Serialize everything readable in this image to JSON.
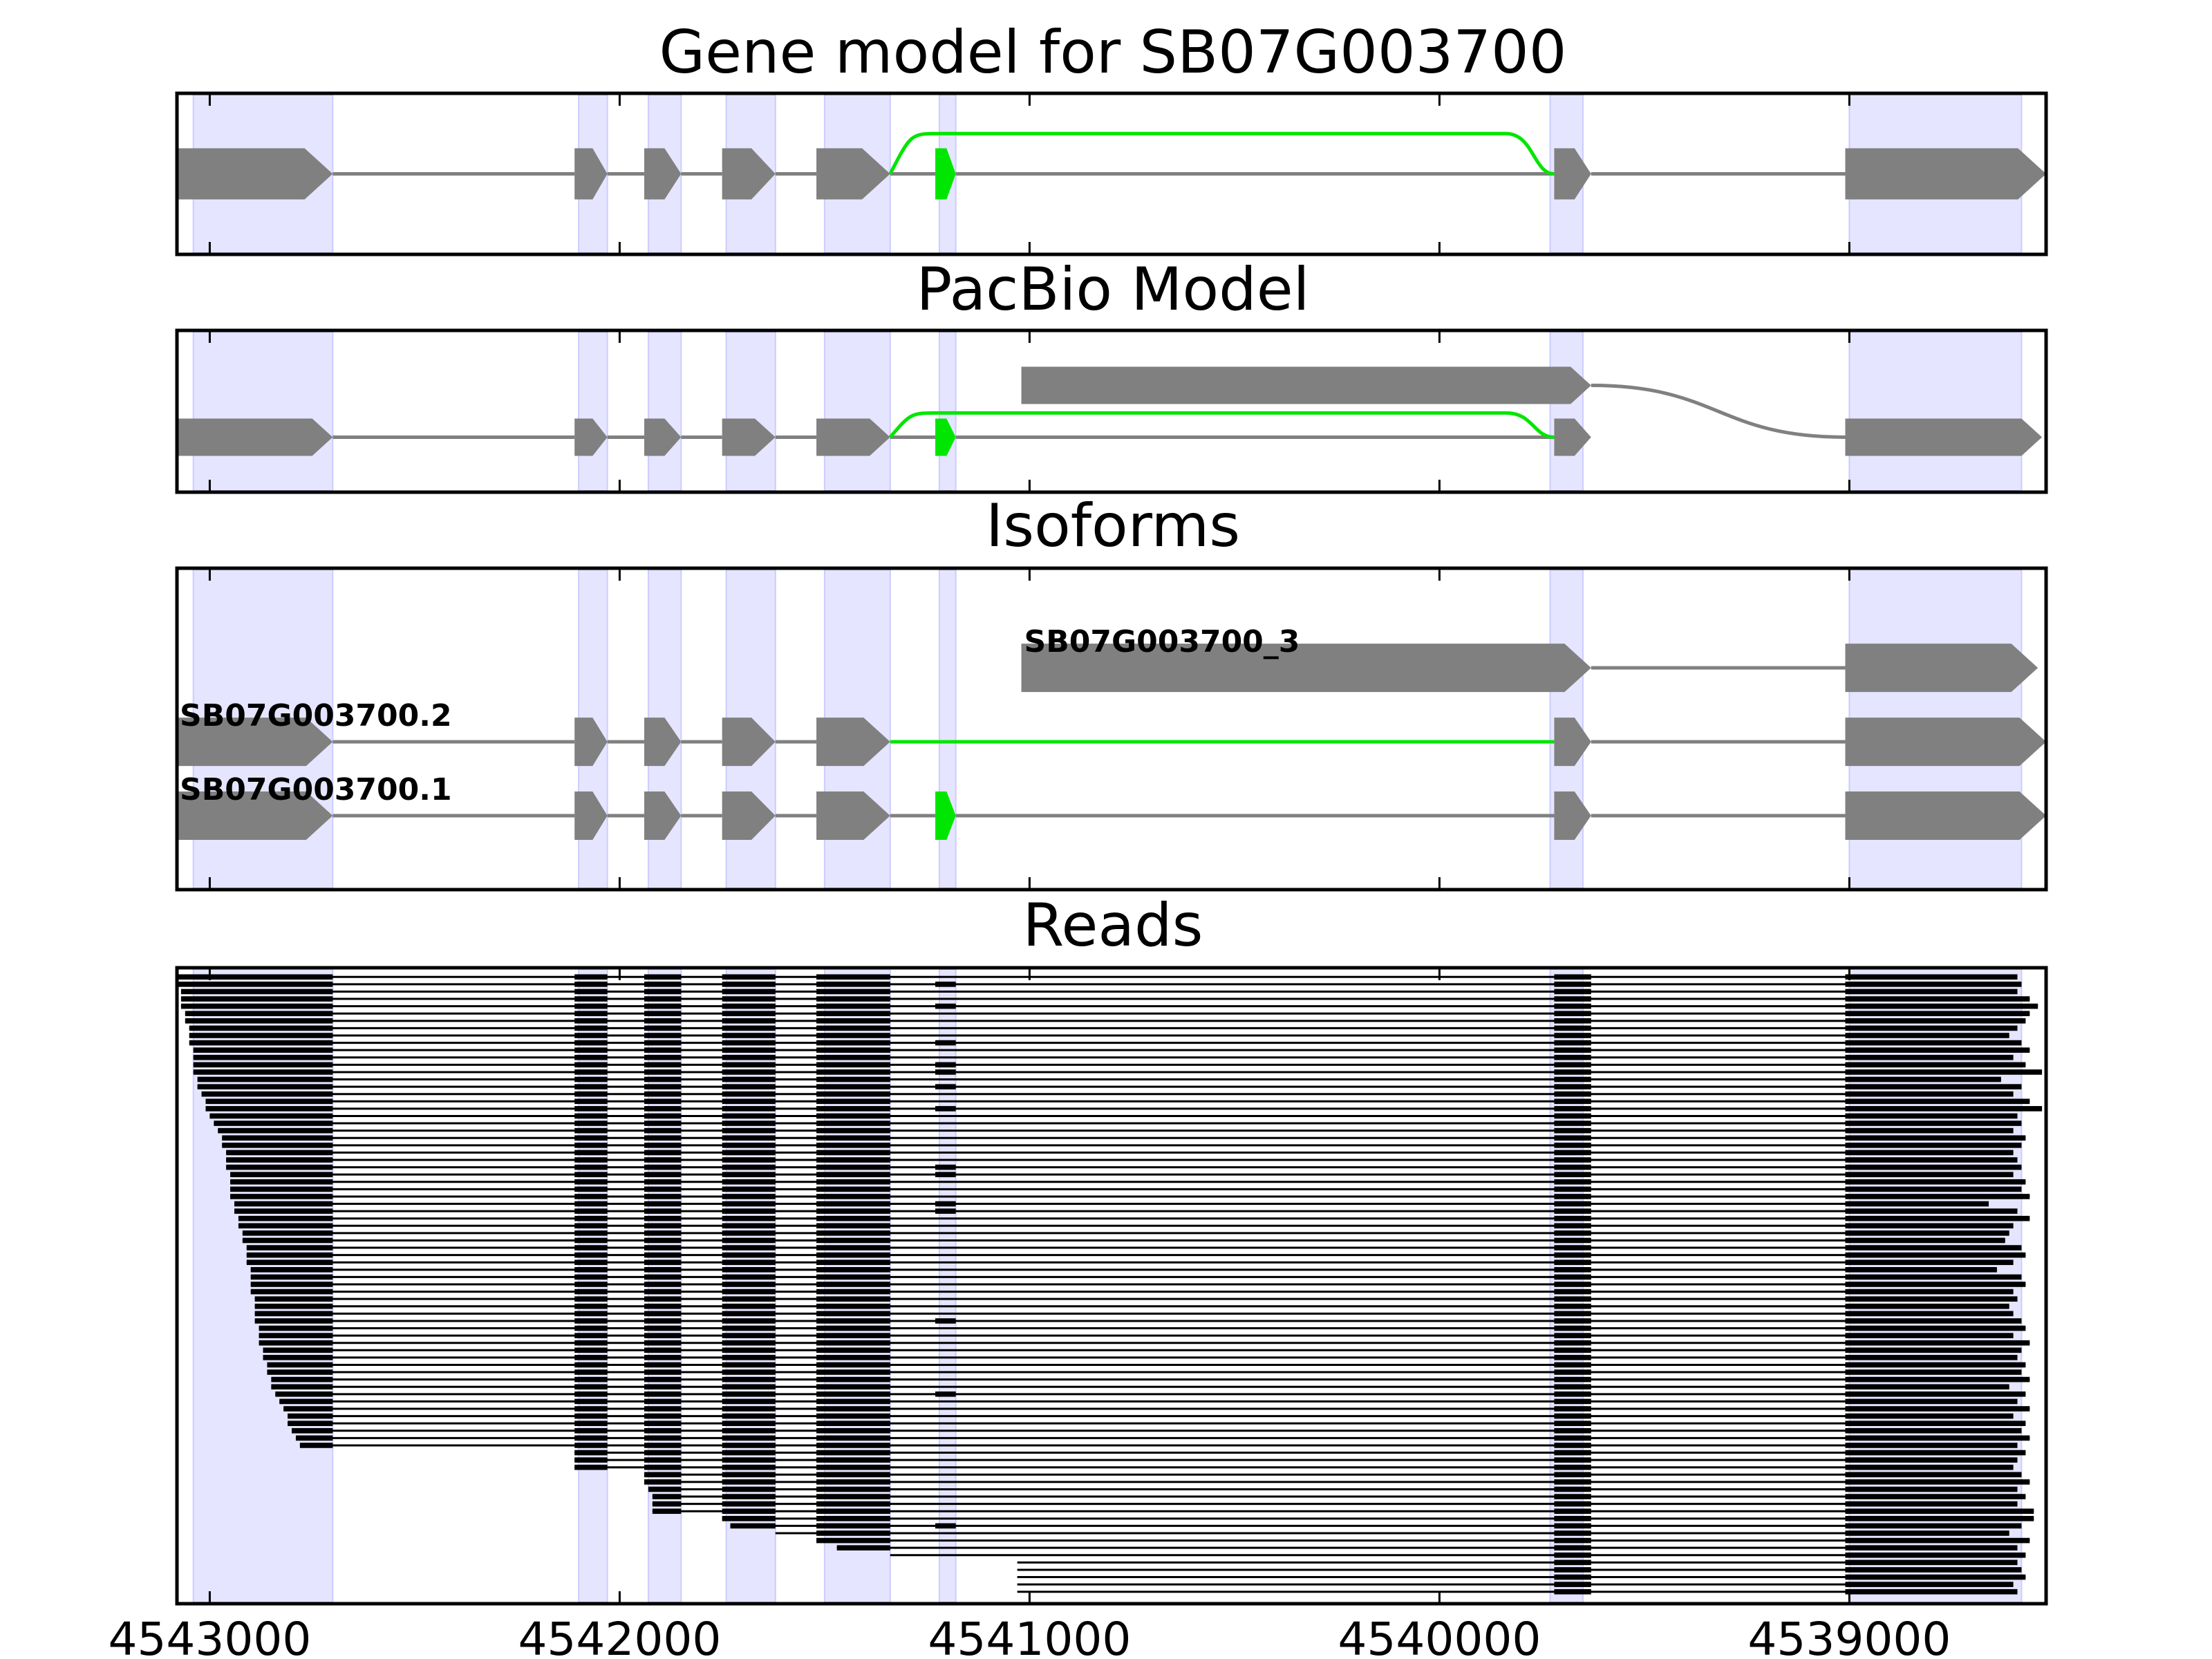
{
  "colors": {
    "exon": "#808080",
    "intron": "#808080",
    "alt_splice": "#00e600",
    "highlight_band": "#e5e5ff",
    "highlight_band_edge": "#ccccff",
    "read": "#000000",
    "frame": "#000000"
  },
  "x_axis": {
    "domain": [
      4543080,
      4538520
    ],
    "ticks": [
      {
        "value": 4543000,
        "label": "4543000"
      },
      {
        "value": 4542000,
        "label": "4542000"
      },
      {
        "value": 4541000,
        "label": "4541000"
      },
      {
        "value": 4540000,
        "label": "4540000"
      },
      {
        "value": 4539000,
        "label": "4539000"
      }
    ]
  },
  "highlight_bands": [
    [
      4543040,
      4542700
    ],
    [
      4542100,
      4542030
    ],
    [
      4541930,
      4541850
    ],
    [
      4541740,
      4541620
    ],
    [
      4541500,
      4541340
    ],
    [
      4541220,
      4541180
    ],
    [
      4539730,
      4539650
    ],
    [
      4539000,
      4538580
    ]
  ],
  "panels": [
    {
      "id": "gene-model",
      "title": "Gene model for SB07G003700",
      "rows": [
        {
          "y": 0.5,
          "label": "",
          "exons": [
            [
              4543080,
              4542700
            ],
            [
              4542110,
              4542030
            ],
            [
              4541940,
              4541850
            ],
            [
              4541750,
              4541620
            ],
            [
              4541520,
              4541340
            ],
            [
              4541230,
              4541180
            ],
            [
              4539720,
              4539630
            ],
            [
              4539010,
              4538520
            ]
          ],
          "alt_exons": [
            [
              4541230,
              4541180
            ]
          ]
        }
      ],
      "splice_curves": [
        {
          "from": 4541340,
          "to": 4539720,
          "y_from": 0.5,
          "y_to": 0.5,
          "lift": 0.25,
          "color": "alt_splice"
        }
      ]
    },
    {
      "id": "pacbio-model",
      "title": "PacBio Model",
      "rows": [
        {
          "y": 0.66,
          "label": "",
          "exons": [
            [
              4543080,
              4542700
            ],
            [
              4542110,
              4542030
            ],
            [
              4541940,
              4541850
            ],
            [
              4541750,
              4541620
            ],
            [
              4541520,
              4541340
            ],
            [
              4541230,
              4541180
            ],
            [
              4539720,
              4539630
            ],
            [
              4539010,
              4538530
            ]
          ],
          "alt_exons": [
            [
              4541230,
              4541180
            ]
          ],
          "no_intron_spans": [
            [
              4539630,
              4539010
            ]
          ]
        },
        {
          "y": 0.34,
          "label": "",
          "exons": [
            [
              4541020,
              4539630
            ]
          ],
          "alt_exons": []
        }
      ],
      "splice_curves": [
        {
          "from": 4541340,
          "to": 4539720,
          "y_from": 0.66,
          "y_to": 0.66,
          "lift": 0.15,
          "color": "alt_splice"
        },
        {
          "from": 4539630,
          "to": 4539010,
          "y_from": 0.34,
          "y_to": 0.66,
          "lift": 0,
          "color": "intron"
        }
      ]
    },
    {
      "id": "isoforms",
      "title": "Isoforms",
      "rows": [
        {
          "y": 0.31,
          "label": "SB07G003700_3",
          "exons": [
            [
              4541020,
              4539630
            ],
            [
              4539010,
              4538540
            ]
          ],
          "alt_exons": []
        },
        {
          "y": 0.54,
          "label": "SB07G003700.2",
          "exons": [
            [
              4543080,
              4542700
            ],
            [
              4542110,
              4542030
            ],
            [
              4541940,
              4541850
            ],
            [
              4541750,
              4541620
            ],
            [
              4541520,
              4541340
            ],
            [
              4539720,
              4539630
            ],
            [
              4539010,
              4538520
            ]
          ],
          "alt_exons": [],
          "alt_introns": [
            [
              4541340,
              4539720
            ]
          ]
        },
        {
          "y": 0.77,
          "label": "SB07G003700.1",
          "exons": [
            [
              4543080,
              4542700
            ],
            [
              4542110,
              4542030
            ],
            [
              4541940,
              4541850
            ],
            [
              4541750,
              4541620
            ],
            [
              4541520,
              4541340
            ],
            [
              4541230,
              4541180
            ],
            [
              4539720,
              4539630
            ],
            [
              4539010,
              4538520
            ]
          ],
          "alt_exons": [
            [
              4541230,
              4541180
            ]
          ]
        }
      ],
      "splice_curves": []
    }
  ],
  "reads_panel": {
    "title": "Reads",
    "reads": [
      {
        "start": 4543080,
        "end": 4538590
      },
      {
        "start": 4543080,
        "end": 4538580
      },
      {
        "start": 4543070,
        "end": 4538590
      },
      {
        "start": 4543070,
        "end": 4538560
      },
      {
        "start": 4543070,
        "end": 4538540
      },
      {
        "start": 4543060,
        "end": 4538560
      },
      {
        "start": 4543060,
        "end": 4538570
      },
      {
        "start": 4543050,
        "end": 4538590
      },
      {
        "start": 4543050,
        "end": 4538610
      },
      {
        "start": 4543050,
        "end": 4538580
      },
      {
        "start": 4543040,
        "end": 4538560
      },
      {
        "start": 4543040,
        "end": 4538600
      },
      {
        "start": 4543040,
        "end": 4538570
      },
      {
        "start": 4543040,
        "end": 4538530
      },
      {
        "start": 4543030,
        "end": 4538630
      },
      {
        "start": 4543030,
        "end": 4538580
      },
      {
        "start": 4543020,
        "end": 4538600
      },
      {
        "start": 4543010,
        "end": 4538560
      },
      {
        "start": 4543010,
        "end": 4538530
      },
      {
        "start": 4543000,
        "end": 4538590
      },
      {
        "start": 4542990,
        "end": 4538580
      },
      {
        "start": 4542980,
        "end": 4538600
      },
      {
        "start": 4542970,
        "end": 4538570
      },
      {
        "start": 4542970,
        "end": 4538580
      },
      {
        "start": 4542960,
        "end": 4538600
      },
      {
        "start": 4542960,
        "end": 4538590
      },
      {
        "start": 4542960,
        "end": 4538580
      },
      {
        "start": 4542950,
        "end": 4538600
      },
      {
        "start": 4542950,
        "end": 4538570
      },
      {
        "start": 4542950,
        "end": 4538580
      },
      {
        "start": 4542950,
        "end": 4538560
      },
      {
        "start": 4542940,
        "end": 4538660
      },
      {
        "start": 4542940,
        "end": 4538590
      },
      {
        "start": 4542930,
        "end": 4538560
      },
      {
        "start": 4542930,
        "end": 4538600
      },
      {
        "start": 4542920,
        "end": 4538610
      },
      {
        "start": 4542920,
        "end": 4538620
      },
      {
        "start": 4542910,
        "end": 4538580
      },
      {
        "start": 4542910,
        "end": 4538570
      },
      {
        "start": 4542910,
        "end": 4538600
      },
      {
        "start": 4542900,
        "end": 4538640
      },
      {
        "start": 4542900,
        "end": 4538580
      },
      {
        "start": 4542900,
        "end": 4538570
      },
      {
        "start": 4542900,
        "end": 4538600
      },
      {
        "start": 4542890,
        "end": 4538590
      },
      {
        "start": 4542890,
        "end": 4538610
      },
      {
        "start": 4542890,
        "end": 4538600
      },
      {
        "start": 4542890,
        "end": 4538580
      },
      {
        "start": 4542880,
        "end": 4538570
      },
      {
        "start": 4542880,
        "end": 4538600
      },
      {
        "start": 4542880,
        "end": 4538560
      },
      {
        "start": 4542870,
        "end": 4538580
      },
      {
        "start": 4542870,
        "end": 4538590
      },
      {
        "start": 4542860,
        "end": 4538570
      },
      {
        "start": 4542860,
        "end": 4538580
      },
      {
        "start": 4542850,
        "end": 4538560
      },
      {
        "start": 4542850,
        "end": 4538610
      },
      {
        "start": 4542840,
        "end": 4538570
      },
      {
        "start": 4542830,
        "end": 4538590
      },
      {
        "start": 4542820,
        "end": 4538560
      },
      {
        "start": 4542810,
        "end": 4538600
      },
      {
        "start": 4542810,
        "end": 4538570
      },
      {
        "start": 4542800,
        "end": 4538580
      },
      {
        "start": 4542790,
        "end": 4538560
      },
      {
        "start": 4542780,
        "end": 4538590
      },
      {
        "start": 4542110,
        "end": 4538570
      },
      {
        "start": 4542110,
        "end": 4538590
      },
      {
        "start": 4542110,
        "end": 4538600
      },
      {
        "start": 4541940,
        "end": 4538580
      },
      {
        "start": 4541940,
        "end": 4538560
      },
      {
        "start": 4541930,
        "end": 4538590
      },
      {
        "start": 4541920,
        "end": 4538570
      },
      {
        "start": 4541920,
        "end": 4538590
      },
      {
        "start": 4541920,
        "end": 4538550
      },
      {
        "start": 4541750,
        "end": 4538550
      },
      {
        "start": 4541730,
        "end": 4538580
      },
      {
        "start": 4541620,
        "end": 4538610
      },
      {
        "start": 4541520,
        "end": 4538560
      },
      {
        "start": 4541470,
        "end": 4538590
      },
      {
        "start": 4541340,
        "end": 4538570
      },
      {
        "start": 4541030,
        "end": 4538590
      },
      {
        "start": 4541030,
        "end": 4538580
      },
      {
        "start": 4541030,
        "end": 4538570
      },
      {
        "start": 4541030,
        "end": 4538600
      },
      {
        "start": 4541030,
        "end": 4538590
      }
    ],
    "skip_alt_exon_reads": [
      1,
      4,
      9,
      12,
      13,
      15,
      18,
      26,
      27,
      31,
      32,
      47,
      57,
      75
    ]
  }
}
